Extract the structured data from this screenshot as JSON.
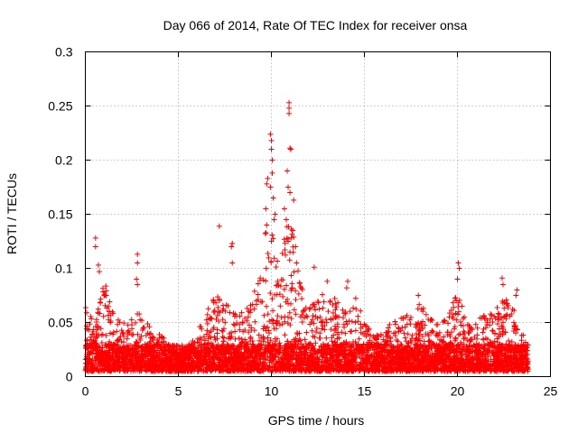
{
  "chart_data": {
    "type": "scatter",
    "title": "Day 066 of 2014, Rate Of TEC Index for receiver onsa",
    "xlabel": "GPS time / hours",
    "ylabel": "ROTI / TECUs",
    "xlim": [
      0,
      25
    ],
    "ylim": [
      0,
      0.3
    ],
    "x_ticks": [
      0,
      5,
      10,
      15,
      20,
      25
    ],
    "x_tick_labels": [
      "0",
      "5",
      "10",
      "15",
      "20",
      "25"
    ],
    "y_ticks": [
      0,
      0.05,
      0.1,
      0.15,
      0.2,
      0.25,
      0.3
    ],
    "y_tick_labels": [
      "0",
      "0.05",
      "0.1",
      "0.15",
      "0.2",
      "0.25",
      "0.3"
    ],
    "grid": true,
    "marker": "+",
    "series_color": "#ff0000",
    "x_range_of_data": [
      0,
      23.8
    ],
    "baseline_band": [
      0.005,
      0.03
    ],
    "envelope": [
      {
        "x": 0.0,
        "y": 0.065
      },
      {
        "x": 0.5,
        "y": 0.05
      },
      {
        "x": 1.0,
        "y": 0.09
      },
      {
        "x": 1.5,
        "y": 0.06
      },
      {
        "x": 2.0,
        "y": 0.05
      },
      {
        "x": 2.5,
        "y": 0.055
      },
      {
        "x": 3.0,
        "y": 0.06
      },
      {
        "x": 3.5,
        "y": 0.045
      },
      {
        "x": 4.0,
        "y": 0.04
      },
      {
        "x": 4.5,
        "y": 0.03
      },
      {
        "x": 5.0,
        "y": 0.025
      },
      {
        "x": 5.5,
        "y": 0.03
      },
      {
        "x": 6.0,
        "y": 0.04
      },
      {
        "x": 6.5,
        "y": 0.06
      },
      {
        "x": 7.0,
        "y": 0.08
      },
      {
        "x": 7.5,
        "y": 0.07
      },
      {
        "x": 8.0,
        "y": 0.06
      },
      {
        "x": 8.5,
        "y": 0.06
      },
      {
        "x": 9.0,
        "y": 0.07
      },
      {
        "x": 9.5,
        "y": 0.12
      },
      {
        "x": 10.0,
        "y": 0.16
      },
      {
        "x": 10.5,
        "y": 0.11
      },
      {
        "x": 11.0,
        "y": 0.16
      },
      {
        "x": 11.5,
        "y": 0.09
      },
      {
        "x": 12.0,
        "y": 0.07
      },
      {
        "x": 12.5,
        "y": 0.07
      },
      {
        "x": 13.0,
        "y": 0.085
      },
      {
        "x": 13.5,
        "y": 0.07
      },
      {
        "x": 14.0,
        "y": 0.06
      },
      {
        "x": 14.5,
        "y": 0.075
      },
      {
        "x": 15.0,
        "y": 0.055
      },
      {
        "x": 15.5,
        "y": 0.04
      },
      {
        "x": 16.0,
        "y": 0.045
      },
      {
        "x": 16.5,
        "y": 0.05
      },
      {
        "x": 17.0,
        "y": 0.055
      },
      {
        "x": 17.5,
        "y": 0.06
      },
      {
        "x": 18.0,
        "y": 0.07
      },
      {
        "x": 18.5,
        "y": 0.06
      },
      {
        "x": 19.0,
        "y": 0.05
      },
      {
        "x": 19.5,
        "y": 0.055
      },
      {
        "x": 20.0,
        "y": 0.08
      },
      {
        "x": 20.5,
        "y": 0.05
      },
      {
        "x": 21.0,
        "y": 0.05
      },
      {
        "x": 21.5,
        "y": 0.06
      },
      {
        "x": 22.0,
        "y": 0.06
      },
      {
        "x": 22.5,
        "y": 0.075
      },
      {
        "x": 23.0,
        "y": 0.065
      },
      {
        "x": 23.5,
        "y": 0.04
      },
      {
        "x": 23.8,
        "y": 0.035
      }
    ],
    "notable_points": [
      {
        "x": 0.55,
        "y": 0.128
      },
      {
        "x": 0.55,
        "y": 0.12
      },
      {
        "x": 0.7,
        "y": 0.103
      },
      {
        "x": 0.75,
        "y": 0.097
      },
      {
        "x": 2.8,
        "y": 0.113
      },
      {
        "x": 2.8,
        "y": 0.105
      },
      {
        "x": 2.75,
        "y": 0.09
      },
      {
        "x": 2.8,
        "y": 0.085
      },
      {
        "x": 7.2,
        "y": 0.139
      },
      {
        "x": 7.9,
        "y": 0.123
      },
      {
        "x": 7.85,
        "y": 0.12
      },
      {
        "x": 7.9,
        "y": 0.105
      },
      {
        "x": 9.75,
        "y": 0.178
      },
      {
        "x": 9.8,
        "y": 0.183
      },
      {
        "x": 9.95,
        "y": 0.224
      },
      {
        "x": 10.0,
        "y": 0.218
      },
      {
        "x": 10.0,
        "y": 0.21
      },
      {
        "x": 10.05,
        "y": 0.2
      },
      {
        "x": 10.05,
        "y": 0.188
      },
      {
        "x": 9.95,
        "y": 0.175
      },
      {
        "x": 10.1,
        "y": 0.165
      },
      {
        "x": 10.15,
        "y": 0.145
      },
      {
        "x": 10.2,
        "y": 0.15
      },
      {
        "x": 9.7,
        "y": 0.155
      },
      {
        "x": 9.75,
        "y": 0.14
      },
      {
        "x": 10.0,
        "y": 0.125
      },
      {
        "x": 10.95,
        "y": 0.253
      },
      {
        "x": 10.95,
        "y": 0.248
      },
      {
        "x": 10.95,
        "y": 0.243
      },
      {
        "x": 11.0,
        "y": 0.211
      },
      {
        "x": 11.05,
        "y": 0.21
      },
      {
        "x": 10.85,
        "y": 0.19
      },
      {
        "x": 10.9,
        "y": 0.175
      },
      {
        "x": 11.0,
        "y": 0.17
      },
      {
        "x": 11.2,
        "y": 0.163
      },
      {
        "x": 10.7,
        "y": 0.155
      },
      {
        "x": 10.8,
        "y": 0.145
      },
      {
        "x": 11.15,
        "y": 0.135
      },
      {
        "x": 10.9,
        "y": 0.125
      },
      {
        "x": 11.0,
        "y": 0.115
      },
      {
        "x": 11.3,
        "y": 0.12
      },
      {
        "x": 12.3,
        "y": 0.101
      },
      {
        "x": 13.0,
        "y": 0.088
      },
      {
        "x": 14.1,
        "y": 0.088
      },
      {
        "x": 14.05,
        "y": 0.082
      },
      {
        "x": 17.9,
        "y": 0.075
      },
      {
        "x": 20.05,
        "y": 0.105
      },
      {
        "x": 20.1,
        "y": 0.1
      },
      {
        "x": 20.0,
        "y": 0.09
      },
      {
        "x": 22.4,
        "y": 0.091
      },
      {
        "x": 22.45,
        "y": 0.085
      },
      {
        "x": 23.2,
        "y": 0.08
      },
      {
        "x": 23.15,
        "y": 0.075
      }
    ]
  }
}
